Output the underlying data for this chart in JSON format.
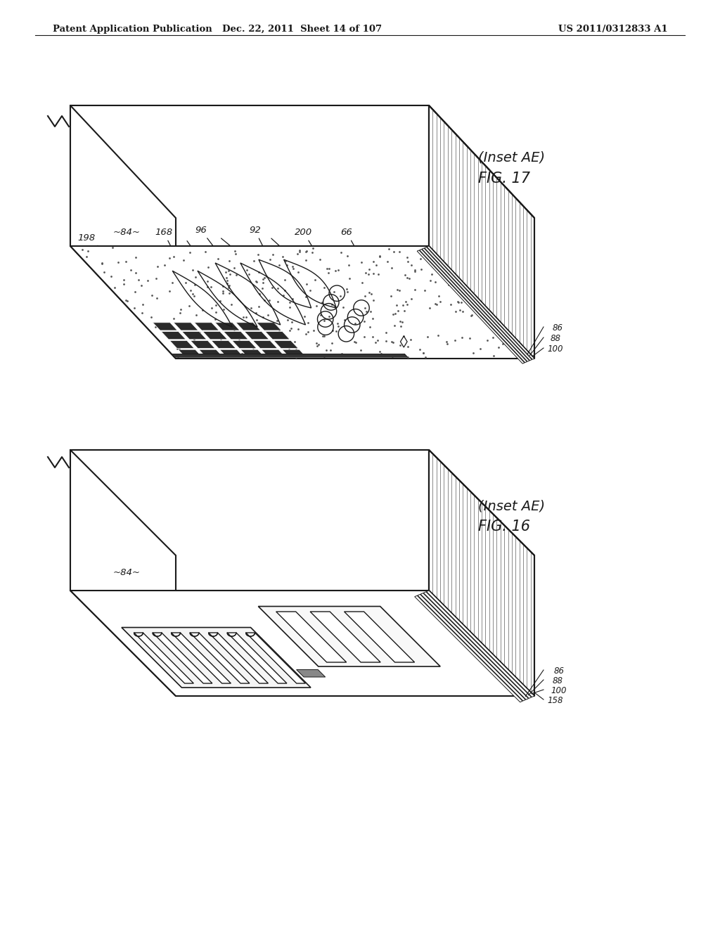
{
  "header_left": "Patent Application Publication",
  "header_mid": "Dec. 22, 2011  Sheet 14 of 107",
  "header_right": "US 2011/0312833 A1",
  "fig16_title": "FIG. 16",
  "fig16_subtitle": "(Inset AE)",
  "fig17_title": "FIG. 17",
  "fig17_subtitle": "(Inset AE)",
  "bg_color": "#ffffff",
  "line_color": "#1a1a1a"
}
